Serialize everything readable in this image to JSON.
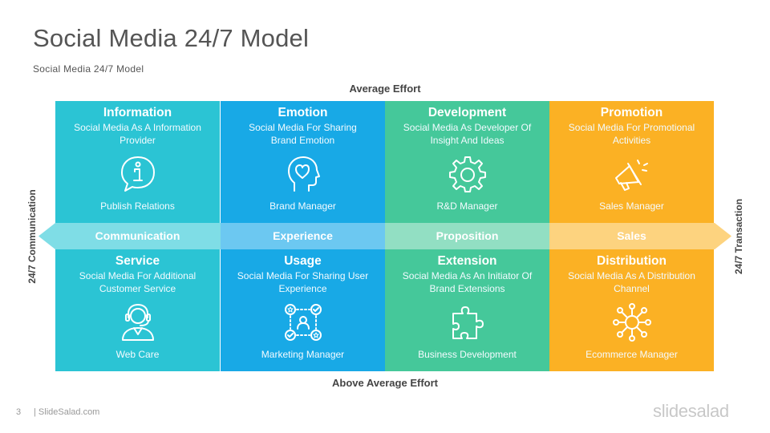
{
  "header": {
    "title": "Social Media 24/7 Model",
    "subtitle": "Social Media 24/7 Model"
  },
  "axes": {
    "top": "Average Effort",
    "bottom": "Above Average Effort",
    "left": "24/7 Communication",
    "right": "24/7 Transaction"
  },
  "colors": {
    "col1": "#2bc4d4",
    "col2": "#18a9e6",
    "col3": "#45c89a",
    "col4": "#fbb124"
  },
  "band": {
    "labels": [
      "Communication",
      "Experience",
      "Proposition",
      "Sales"
    ]
  },
  "columns": [
    {
      "top": {
        "title": "Information",
        "desc1": "Social Media As A Information",
        "desc2": "Provider",
        "icon": "info-bubble-icon",
        "role": "Publish Relations"
      },
      "bottom": {
        "title": "Service",
        "desc1": "Social Media For Additional",
        "desc2": "Customer Service",
        "icon": "headset-agent-icon",
        "role": "Web Care"
      }
    },
    {
      "top": {
        "title": "Emotion",
        "desc1": "Social Media For Sharing",
        "desc2": "Brand Emotion",
        "icon": "head-heart-icon",
        "role": "Brand Manager"
      },
      "bottom": {
        "title": "Usage",
        "desc1": "Social Media For Sharing User",
        "desc2": "Experience",
        "icon": "user-network-icon",
        "role": "Marketing Manager"
      }
    },
    {
      "top": {
        "title": "Development",
        "desc1": "Social Media As Developer Of",
        "desc2": "Insight And Ideas",
        "icon": "gear-icon",
        "role": "R&D Manager"
      },
      "bottom": {
        "title": "Extension",
        "desc1": "Social Media As An Initiator Of",
        "desc2": "Brand Extensions",
        "icon": "puzzle-icon",
        "role": "Business Development"
      }
    },
    {
      "top": {
        "title": "Promotion",
        "desc1": "Social Media For Promotional",
        "desc2": "Activities",
        "icon": "megaphone-icon",
        "role": "Sales Manager"
      },
      "bottom": {
        "title": "Distribution",
        "desc1": "Social Media As A Distribution",
        "desc2": "Channel",
        "icon": "network-hub-icon",
        "role": "Ecommerce Manager"
      }
    }
  ],
  "footer": {
    "page": "3",
    "site": "| SlideSalad.com",
    "brand": "slidesalad"
  }
}
